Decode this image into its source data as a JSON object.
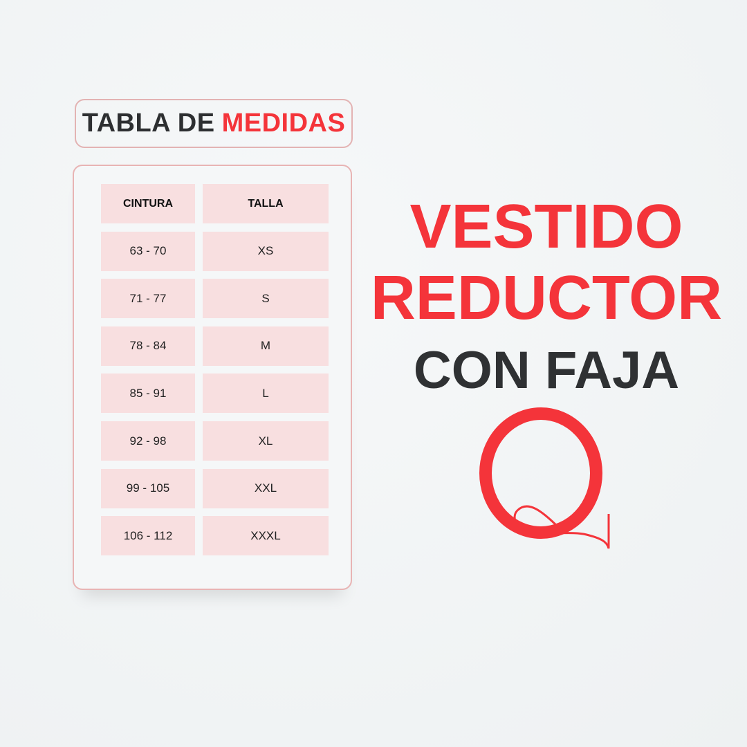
{
  "title": {
    "part1": "TABLA DE",
    "part2": "MEDIDAS"
  },
  "table": {
    "headers": [
      "CINTURA",
      "TALLA"
    ],
    "rows": [
      [
        "63 - 70",
        "XS"
      ],
      [
        "71 - 77",
        "S"
      ],
      [
        "78 - 84",
        "M"
      ],
      [
        "85 - 91",
        "L"
      ],
      [
        "92 - 98",
        "XL"
      ],
      [
        "99 - 105",
        "XXL"
      ],
      [
        "106 - 112",
        "XXXL"
      ]
    ]
  },
  "headline": {
    "line1": "VESTIDO",
    "line2": "REDUCTOR",
    "line3": "CON FAJA"
  },
  "logo": {
    "letter": "Q"
  },
  "colors": {
    "accent": "#f4343a",
    "dark": "#2f3133",
    "cell": "#f8dfe0",
    "border": "#e8b4b4"
  }
}
